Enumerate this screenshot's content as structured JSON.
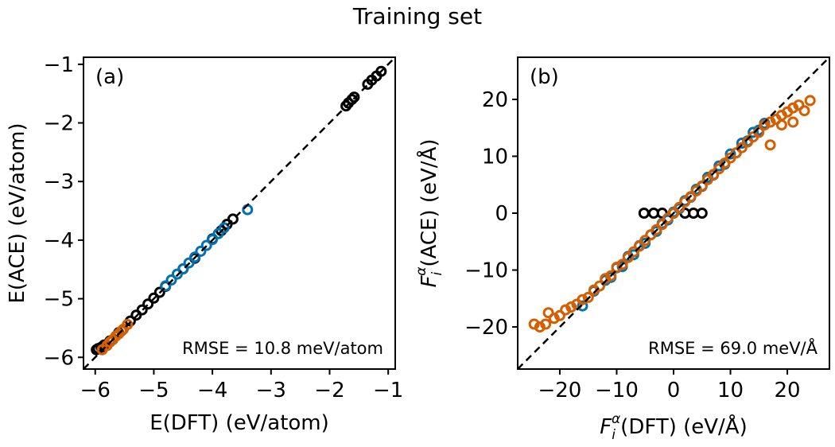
{
  "suptitle": "Training set",
  "colors": {
    "black": "#000000",
    "blue": "#0072b2",
    "orange": "#d55e00"
  },
  "chart_data": [
    {
      "type": "scatter",
      "panel_label": "(a)",
      "xlabel": "E(DFT) (eV/atom)",
      "ylabel": "E(ACE) (eV/atom)",
      "xlim": [
        -6.2,
        -0.88
      ],
      "ylim": [
        -6.2,
        -0.88
      ],
      "xticks": [
        -6,
        -5,
        -4,
        -3,
        -2,
        -1
      ],
      "yticks": [
        -6,
        -5,
        -4,
        -3,
        -2,
        -1
      ],
      "xtick_labels": [
        "−6",
        "−5",
        "−4",
        "−3",
        "−2",
        "−1"
      ],
      "ytick_labels": [
        "−6",
        "−5",
        "−4",
        "−3",
        "−2",
        "−1"
      ],
      "annotation": "RMSE = 10.8 meV/atom",
      "reference_line": "y = x (dashed)",
      "series": [
        {
          "name": "black",
          "color": "#000000",
          "points": [
            [
              -5.98,
              -5.87
            ],
            [
              -5.95,
              -5.85
            ],
            [
              -5.9,
              -5.83
            ],
            [
              -5.85,
              -5.79
            ],
            [
              -5.75,
              -5.72
            ],
            [
              -5.6,
              -5.58
            ],
            [
              -5.4,
              -5.38
            ],
            [
              -5.3,
              -5.28
            ],
            [
              -5.2,
              -5.19
            ],
            [
              -5.1,
              -5.09
            ],
            [
              -5.0,
              -4.99
            ],
            [
              -4.9,
              -4.89
            ],
            [
              -4.8,
              -4.79
            ],
            [
              -4.5,
              -4.49
            ],
            [
              -4.3,
              -4.31
            ],
            [
              -4.0,
              -3.98
            ],
            [
              -3.85,
              -3.84
            ],
            [
              -3.75,
              -3.73
            ],
            [
              -3.65,
              -3.64
            ],
            [
              -1.72,
              -1.71
            ],
            [
              -1.68,
              -1.66
            ],
            [
              -1.62,
              -1.6
            ],
            [
              -1.58,
              -1.56
            ],
            [
              -1.35,
              -1.34
            ],
            [
              -1.28,
              -1.27
            ],
            [
              -1.2,
              -1.2
            ],
            [
              -1.12,
              -1.12
            ]
          ]
        },
        {
          "name": "blue",
          "color": "#0072b2",
          "points": [
            [
              -4.8,
              -4.78
            ],
            [
              -4.7,
              -4.68
            ],
            [
              -4.6,
              -4.58
            ],
            [
              -4.5,
              -4.49
            ],
            [
              -4.4,
              -4.39
            ],
            [
              -4.3,
              -4.29
            ],
            [
              -4.2,
              -4.19
            ],
            [
              -4.1,
              -4.09
            ],
            [
              -4.0,
              -3.99
            ],
            [
              -3.9,
              -3.89
            ],
            [
              -3.8,
              -3.79
            ],
            [
              -3.4,
              -3.48
            ]
          ]
        },
        {
          "name": "orange",
          "color": "#d55e00",
          "points": [
            [
              -5.88,
              -5.87
            ],
            [
              -5.8,
              -5.8
            ],
            [
              -5.75,
              -5.74
            ],
            [
              -5.7,
              -5.7
            ],
            [
              -5.65,
              -5.64
            ],
            [
              -5.6,
              -5.6
            ],
            [
              -5.55,
              -5.55
            ],
            [
              -5.52,
              -5.52
            ],
            [
              -5.45,
              -5.44
            ]
          ]
        }
      ]
    },
    {
      "type": "scatter",
      "panel_label": "(b)",
      "xlabel": "F_i^α(DFT) (eV/Å)",
      "ylabel": "F_i^α(ACE) (eV/Å)",
      "xlim": [
        -27.4,
        27.4
      ],
      "ylim": [
        -27.4,
        27.4
      ],
      "xticks": [
        -20,
        -10,
        0,
        10,
        20
      ],
      "yticks": [
        -20,
        -10,
        0,
        10,
        20
      ],
      "xtick_labels": [
        "−20",
        "−10",
        "0",
        "10",
        "20"
      ],
      "ytick_labels": [
        "−20",
        "−10",
        "0",
        "10",
        "20"
      ],
      "annotation": "RMSE = 69.0 meV/Å",
      "reference_line": "y = x (dashed)",
      "series": [
        {
          "name": "black",
          "color": "#000000",
          "points": [
            [
              -5.2,
              0
            ],
            [
              -3.5,
              0
            ],
            [
              -2,
              0
            ],
            [
              0,
              0
            ],
            [
              2,
              0
            ],
            [
              3.5,
              0
            ],
            [
              5,
              0
            ]
          ]
        },
        {
          "name": "blue",
          "color": "#0072b2",
          "points": [
            [
              -16,
              -16.3
            ],
            [
              -14,
              -13.7
            ],
            [
              -12,
              -11.8
            ],
            [
              -11,
              -11.3
            ],
            [
              -10,
              -9.6
            ],
            [
              -9,
              -9.4
            ],
            [
              -8,
              -7.6
            ],
            [
              -7,
              -7.3
            ],
            [
              -6,
              -5.7
            ],
            [
              -5,
              -5.3
            ],
            [
              -4,
              -3.8
            ],
            [
              -3,
              -3.2
            ],
            [
              -2,
              -1.8
            ],
            [
              -1,
              -1.2
            ],
            [
              0,
              0.2
            ],
            [
              1,
              0.8
            ],
            [
              2,
              2.2
            ],
            [
              3,
              2.8
            ],
            [
              4,
              4.2
            ],
            [
              5,
              4.7
            ],
            [
              6,
              6.3
            ],
            [
              7,
              6.7
            ],
            [
              8,
              8.3
            ],
            [
              9,
              8.6
            ],
            [
              10,
              10.4
            ],
            [
              11,
              10.6
            ],
            [
              12,
              12.3
            ],
            [
              13,
              12.7
            ],
            [
              14,
              14.2
            ],
            [
              15,
              14.6
            ],
            [
              16,
              15.8
            ]
          ]
        },
        {
          "name": "orange",
          "color": "#d55e00",
          "points": [
            [
              -24.5,
              -19.5
            ],
            [
              -23.5,
              -20
            ],
            [
              -22.5,
              -19.5
            ],
            [
              -22,
              -17.5
            ],
            [
              -21,
              -18.5
            ],
            [
              -20,
              -18
            ],
            [
              -19,
              -17
            ],
            [
              -18,
              -16.5
            ],
            [
              -17,
              -16
            ],
            [
              -16,
              -15.2
            ],
            [
              -15,
              -14.8
            ],
            [
              -14,
              -13.5
            ],
            [
              -13,
              -12.8
            ],
            [
              -12,
              -11.5
            ],
            [
              -11,
              -11
            ],
            [
              -10,
              -9.5
            ],
            [
              -9,
              -9
            ],
            [
              -8,
              -7.8
            ],
            [
              -7,
              -6.8
            ],
            [
              -6,
              -5.8
            ],
            [
              -5,
              -4.8
            ],
            [
              -4,
              -3.8
            ],
            [
              -3,
              -2.9
            ],
            [
              -2,
              -2
            ],
            [
              -1,
              -0.9
            ],
            [
              0,
              0
            ],
            [
              1,
              1
            ],
            [
              2,
              2
            ],
            [
              3,
              2.9
            ],
            [
              4,
              3.9
            ],
            [
              5,
              4.8
            ],
            [
              6,
              5.9
            ],
            [
              7,
              6.8
            ],
            [
              8,
              7.8
            ],
            [
              9,
              8.8
            ],
            [
              10,
              9.7
            ],
            [
              11,
              10.6
            ],
            [
              12,
              11.5
            ],
            [
              13,
              12.5
            ],
            [
              14,
              13.4
            ],
            [
              15,
              14.2
            ],
            [
              16,
              15.5
            ],
            [
              17,
              16
            ],
            [
              18,
              16.5
            ],
            [
              19,
              17.2
            ],
            [
              20,
              17.8
            ],
            [
              21,
              18.5
            ],
            [
              22,
              19
            ],
            [
              24,
              19.8
            ],
            [
              17,
              12
            ],
            [
              19,
              15.5
            ],
            [
              21,
              16
            ],
            [
              23,
              18
            ]
          ]
        }
      ]
    }
  ]
}
